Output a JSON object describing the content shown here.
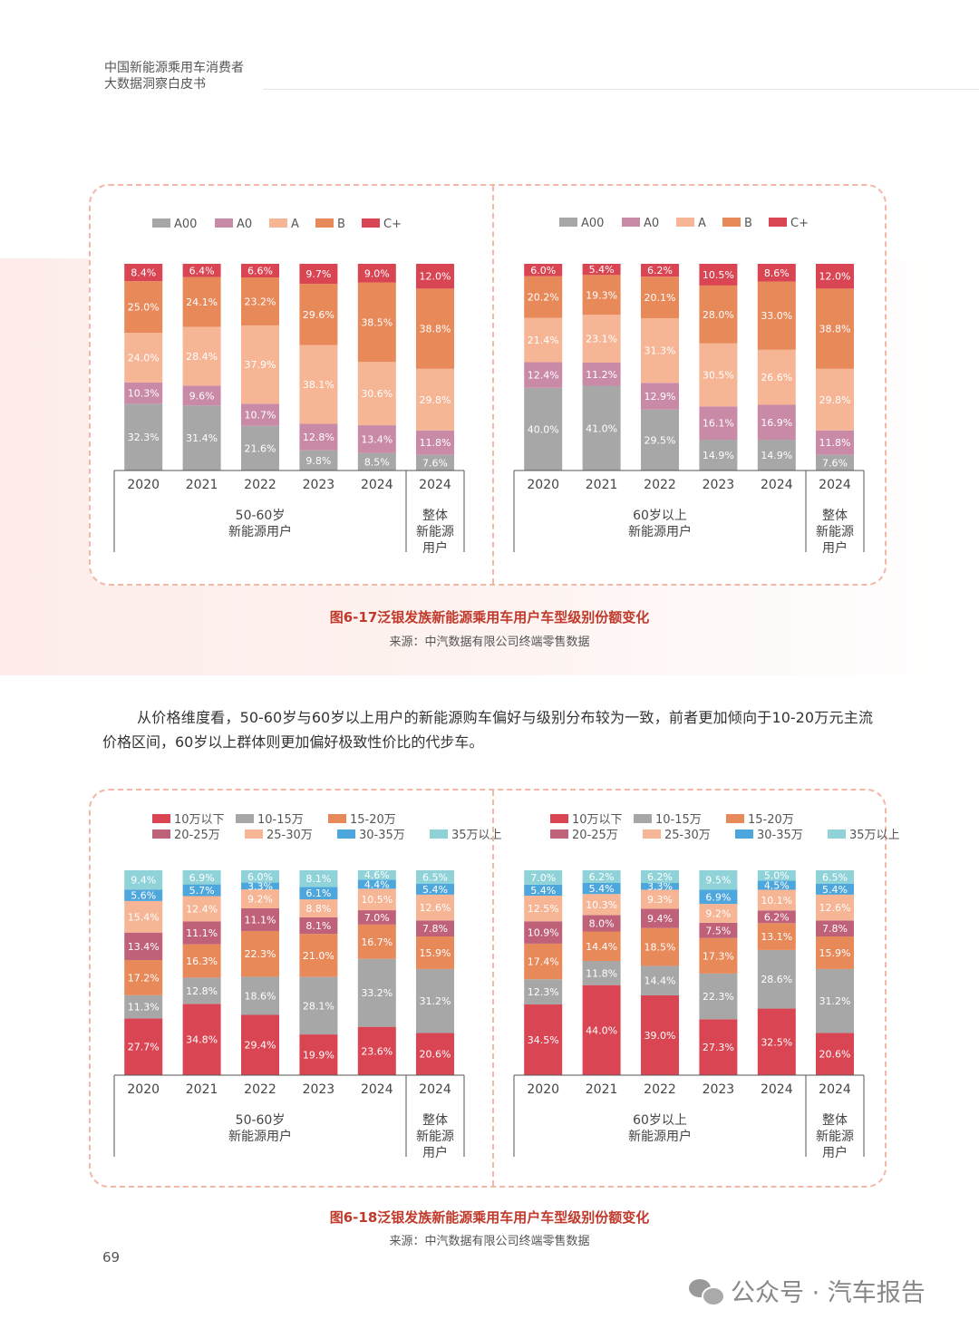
{
  "header": {
    "line1": "中国新能源乘用车消费者",
    "line2": "大数据洞察白皮书"
  },
  "figure1": {
    "caption": "图6-17泛银发族新能源乘用车用户车型级别份额变化",
    "source": "来源：中汽数据有限公司终端零售数据"
  },
  "paragraph": "从价格维度看，50-60岁与60岁以上用户的新能源购车偏好与级别分布较为一致，前者更加倾向于10-20万元主流价格区间，60岁以上群体则更加偏好极致性价比的代步车。",
  "figure2": {
    "caption": "图6-18泛银发族新能源乘用车用户车型级别份额变化",
    "source": "来源：中汽数据有限公司终端零售数据"
  },
  "page_number": "69",
  "watermark": "公众号 · 汽车报告",
  "chart_data": [
    {
      "type": "bar",
      "stacked": true,
      "percent": true,
      "group_label": "50-60岁\n新能源用户",
      "total_label": "整体\n新能源\n用户",
      "categories": [
        "2020",
        "2021",
        "2022",
        "2023",
        "2024",
        "2024"
      ],
      "legend_rows": [
        [
          "A00",
          "A0",
          "A",
          "B",
          "C+"
        ]
      ],
      "series": [
        {
          "name": "A00",
          "color": "#a7a7a7",
          "values": [
            32.3,
            31.4,
            21.6,
            9.8,
            8.5,
            7.6
          ]
        },
        {
          "name": "A0",
          "color": "#c98aa8",
          "values": [
            10.3,
            9.6,
            10.7,
            12.8,
            13.4,
            11.8
          ]
        },
        {
          "name": "A",
          "color": "#f6b595",
          "values": [
            24.0,
            28.4,
            37.9,
            38.1,
            30.6,
            29.8
          ]
        },
        {
          "name": "B",
          "color": "#e8895a",
          "values": [
            25.0,
            24.1,
            23.2,
            29.6,
            38.5,
            38.8
          ]
        },
        {
          "name": "C+",
          "color": "#d94552",
          "values": [
            8.4,
            6.4,
            6.6,
            9.7,
            9.0,
            12.0
          ]
        }
      ]
    },
    {
      "type": "bar",
      "stacked": true,
      "percent": true,
      "group_label": "60岁以上\n新能源用户",
      "total_label": "整体\n新能源\n用户",
      "categories": [
        "2020",
        "2021",
        "2022",
        "2023",
        "2024",
        "2024"
      ],
      "legend_rows": [
        [
          "A00",
          "A0",
          "A",
          "B",
          "C+"
        ]
      ],
      "series": [
        {
          "name": "A00",
          "color": "#a7a7a7",
          "values": [
            40.0,
            41.0,
            29.5,
            14.9,
            14.9,
            7.6
          ]
        },
        {
          "name": "A0",
          "color": "#c98aa8",
          "values": [
            12.4,
            11.2,
            12.9,
            16.1,
            16.9,
            11.8
          ]
        },
        {
          "name": "A",
          "color": "#f6b595",
          "values": [
            21.4,
            23.1,
            31.3,
            30.5,
            26.6,
            29.8
          ]
        },
        {
          "name": "B",
          "color": "#e8895a",
          "values": [
            20.2,
            19.3,
            20.1,
            28.0,
            33.0,
            38.8
          ]
        },
        {
          "name": "C+",
          "color": "#d94552",
          "values": [
            6.0,
            5.4,
            6.2,
            10.5,
            8.6,
            12.0
          ]
        }
      ]
    },
    {
      "type": "bar",
      "stacked": true,
      "percent": true,
      "group_label": "50-60岁\n新能源用户",
      "total_label": "整体\n新能源\n用户",
      "categories": [
        "2020",
        "2021",
        "2022",
        "2023",
        "2024",
        "2024"
      ],
      "legend_rows": [
        [
          "10万以下",
          "10-15万",
          "15-20万"
        ],
        [
          "20-25万",
          "25-30万",
          "30-35万",
          "35万以上"
        ]
      ],
      "series": [
        {
          "name": "10万以下",
          "color": "#d94552",
          "values": [
            27.7,
            34.8,
            29.4,
            19.9,
            23.6,
            20.6
          ]
        },
        {
          "name": "10-15万",
          "color": "#a7a7a7",
          "values": [
            11.3,
            12.8,
            18.6,
            28.1,
            33.2,
            31.2
          ]
        },
        {
          "name": "15-20万",
          "color": "#e8895a",
          "values": [
            17.2,
            16.3,
            22.3,
            21.0,
            16.7,
            15.9
          ]
        },
        {
          "name": "20-25万",
          "color": "#c0617a",
          "values": [
            13.4,
            11.1,
            11.1,
            8.1,
            7.0,
            7.8
          ]
        },
        {
          "name": "25-30万",
          "color": "#f6b595",
          "values": [
            15.4,
            12.4,
            9.2,
            8.8,
            10.5,
            12.6
          ]
        },
        {
          "name": "30-35万",
          "color": "#4da6dc",
          "values": [
            5.6,
            5.7,
            3.3,
            6.1,
            4.4,
            5.4
          ]
        },
        {
          "name": "35万以上",
          "color": "#8fd3d9",
          "values": [
            9.4,
            6.9,
            6.0,
            8.1,
            4.6,
            6.5
          ]
        }
      ]
    },
    {
      "type": "bar",
      "stacked": true,
      "percent": true,
      "group_label": "60岁以上\n新能源用户",
      "total_label": "整体\n新能源\n用户",
      "categories": [
        "2020",
        "2021",
        "2022",
        "2023",
        "2024",
        "2024"
      ],
      "legend_rows": [
        [
          "10万以下",
          "10-15万",
          "15-20万"
        ],
        [
          "20-25万",
          "25-30万",
          "30-35万",
          "35万以上"
        ]
      ],
      "series": [
        {
          "name": "10万以下",
          "color": "#d94552",
          "values": [
            34.5,
            44.0,
            39.0,
            27.3,
            32.5,
            20.6
          ]
        },
        {
          "name": "10-15万",
          "color": "#a7a7a7",
          "values": [
            12.3,
            11.8,
            14.4,
            22.3,
            28.6,
            31.2
          ]
        },
        {
          "name": "15-20万",
          "color": "#e8895a",
          "values": [
            17.4,
            14.4,
            18.5,
            17.3,
            13.1,
            15.9
          ]
        },
        {
          "name": "20-25万",
          "color": "#c0617a",
          "values": [
            10.9,
            8.0,
            9.4,
            7.5,
            6.2,
            7.8
          ]
        },
        {
          "name": "25-30万",
          "color": "#f6b595",
          "values": [
            12.5,
            10.3,
            9.3,
            9.2,
            10.1,
            12.6
          ]
        },
        {
          "name": "30-35万",
          "color": "#4da6dc",
          "values": [
            5.4,
            5.4,
            3.3,
            6.9,
            4.5,
            5.4
          ]
        },
        {
          "name": "35万以上",
          "color": "#8fd3d9",
          "values": [
            7.0,
            6.2,
            6.2,
            9.5,
            5.0,
            6.5
          ]
        }
      ]
    }
  ]
}
